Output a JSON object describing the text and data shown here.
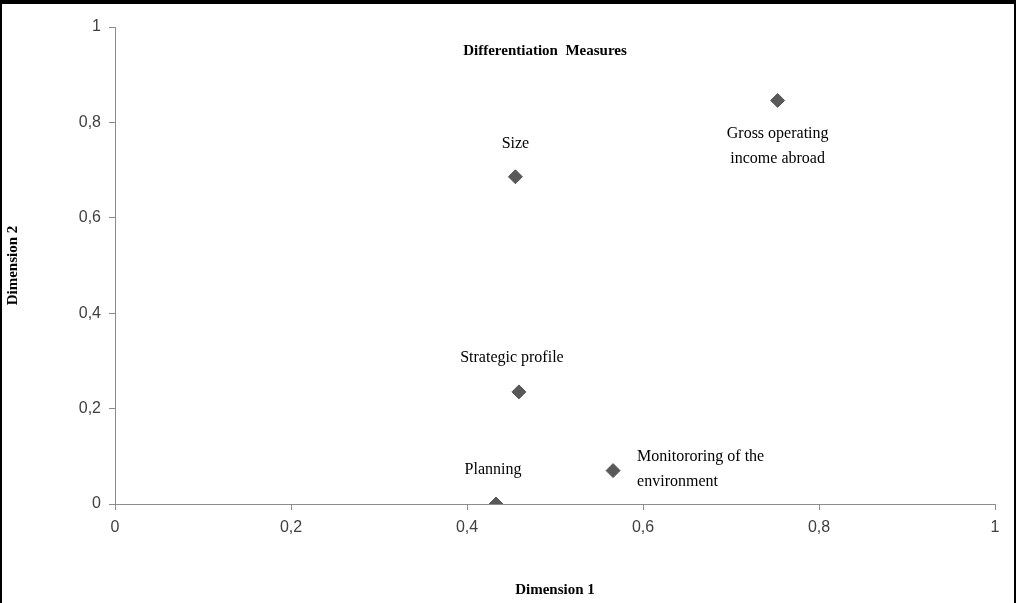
{
  "chart_data": {
    "type": "scatter",
    "title": "Differentiation  Measures",
    "xlabel": "Dimension 1",
    "ylabel": "Dimension 2",
    "x": [
      0.455,
      0.753,
      0.459,
      0.566,
      0.433
    ],
    "series": [
      {
        "color": "#595959",
        "values": [
          0.686,
          0.846,
          0.235,
          0.07,
          0
        ]
      }
    ],
    "annotations": [
      {
        "text": "Size",
        "x": 0.455,
        "y": 0.686
      },
      {
        "text": "Gross operating income abroad",
        "x": 0.753,
        "y": 0.846
      },
      {
        "text": "Strategic profile",
        "x": 0.459,
        "y": 0.235
      },
      {
        "text": "Monitororing of the environment",
        "x": 0.566,
        "y": 0.07
      },
      {
        "text": "Planning",
        "x": 0.433,
        "y": 0
      }
    ],
    "xlim": [
      0,
      1
    ],
    "ylim": [
      0,
      1
    ],
    "xticks": [
      0,
      {
        "value": 0.2,
        "label": "0,2"
      },
      {
        "value": 0.4,
        "label": "0,4"
      },
      {
        "value": 0.6,
        "label": "0,6"
      },
      {
        "value": 0.8,
        "label": "0,8"
      },
      1
    ],
    "yticks": [
      0,
      {
        "value": 0.2,
        "label": "0,2"
      },
      {
        "value": 0.4,
        "label": "0,4"
      },
      {
        "value": 0.6,
        "label": "0,6"
      },
      {
        "value": 0.8,
        "label": "0,8"
      },
      1
    ],
    "grid": false,
    "legend": false,
    "marker": "diamond"
  }
}
